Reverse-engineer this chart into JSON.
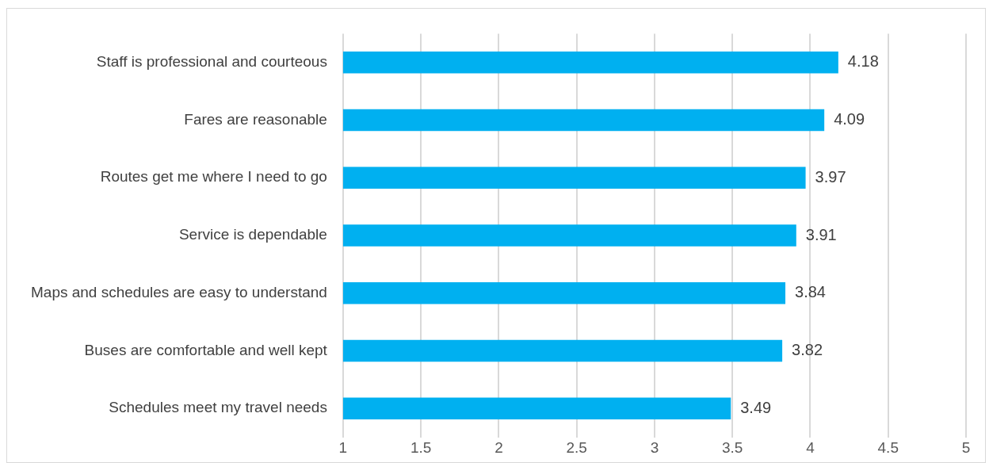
{
  "chart_data": {
    "type": "bar",
    "orientation": "horizontal",
    "categories": [
      "Staff is professional and courteous",
      "Fares are reasonable",
      "Routes get me where I need to go",
      "Service is dependable",
      "Maps and schedules are easy to understand",
      "Buses are comfortable and well kept",
      "Schedules meet my travel needs"
    ],
    "values": [
      4.18,
      4.09,
      3.97,
      3.91,
      3.84,
      3.82,
      3.49
    ],
    "color": "#00b0f0",
    "xlim": [
      1,
      5
    ],
    "xticks": [
      1,
      1.5,
      2,
      2.5,
      3,
      3.5,
      4,
      4.5,
      5
    ],
    "grid": "x",
    "legend": false,
    "data_labels": true
  }
}
